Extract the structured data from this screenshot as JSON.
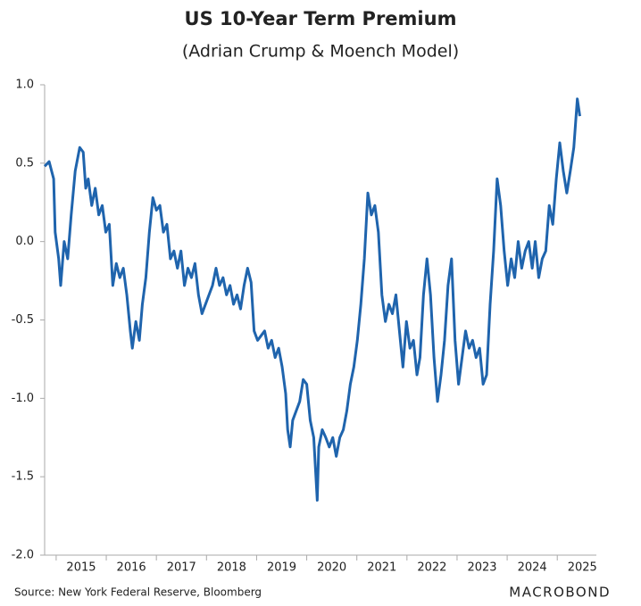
{
  "chart_data": {
    "type": "line",
    "title": "US 10-Year Term Premium",
    "subtitle": "(Adrian Crump & Moench Model)",
    "source": "Source: New York Federal Reserve, Bloomberg",
    "brand": "MACROBOND",
    "grid": false,
    "xlim": [
      2014.77,
      2025.78
    ],
    "xticks": [
      2015,
      2016,
      2017,
      2018,
      2019,
      2020,
      2021,
      2022,
      2023,
      2024,
      2025
    ],
    "ylim": [
      -2.0,
      1.0
    ],
    "yticks": [
      {
        "value": 1.0,
        "label": "1.0"
      },
      {
        "value": 0.5,
        "label": "0.5"
      },
      {
        "value": 0.0,
        "label": "0.0"
      },
      {
        "value": -0.5,
        "label": "-0.5"
      },
      {
        "value": -1.0,
        "label": "-1.0"
      },
      {
        "value": -1.5,
        "label": "-1.5"
      },
      {
        "value": -2.0,
        "label": "-2.0"
      }
    ],
    "x": [
      2014.77,
      2014.86,
      2014.95,
      2014.98,
      2015.05,
      2015.09,
      2015.16,
      2015.23,
      2015.3,
      2015.38,
      2015.47,
      2015.54,
      2015.59,
      2015.64,
      2015.71,
      2015.78,
      2015.85,
      2015.92,
      2015.99,
      2016.06,
      2016.13,
      2016.2,
      2016.27,
      2016.34,
      2016.41,
      2016.48,
      2016.52,
      2016.59,
      2016.66,
      2016.72,
      2016.79,
      2016.86,
      2016.93,
      2017.0,
      2017.07,
      2017.14,
      2017.21,
      2017.28,
      2017.35,
      2017.42,
      2017.49,
      2017.56,
      2017.63,
      2017.7,
      2017.77,
      2017.84,
      2017.91,
      2017.98,
      2018.05,
      2018.12,
      2018.19,
      2018.26,
      2018.33,
      2018.4,
      2018.47,
      2018.54,
      2018.61,
      2018.68,
      2018.75,
      2018.82,
      2018.89,
      2018.95,
      2019.02,
      2019.09,
      2019.16,
      2019.23,
      2019.3,
      2019.37,
      2019.44,
      2019.51,
      2019.58,
      2019.62,
      2019.67,
      2019.72,
      2019.79,
      2019.86,
      2019.93,
      2020.0,
      2020.07,
      2020.14,
      2020.21,
      2020.24,
      2020.31,
      2020.38,
      2020.45,
      2020.52,
      2020.59,
      2020.66,
      2020.73,
      2020.8,
      2020.87,
      2020.94,
      2021.01,
      2021.08,
      2021.15,
      2021.22,
      2021.29,
      2021.36,
      2021.43,
      2021.5,
      2021.57,
      2021.64,
      2021.71,
      2021.78,
      2021.85,
      2021.92,
      2021.99,
      2022.06,
      2022.13,
      2022.2,
      2022.26,
      2022.33,
      2022.4,
      2022.47,
      2022.54,
      2022.61,
      2022.68,
      2022.75,
      2022.82,
      2022.89,
      2022.96,
      2023.03,
      2023.1,
      2023.17,
      2023.24,
      2023.31,
      2023.38,
      2023.45,
      2023.52,
      2023.59,
      2023.66,
      2023.73,
      2023.8,
      2023.87,
      2023.94,
      2024.01,
      2024.08,
      2024.15,
      2024.22,
      2024.29,
      2024.36,
      2024.43,
      2024.5,
      2024.56,
      2024.63,
      2024.7,
      2024.77,
      2024.84,
      2024.91,
      2024.98,
      2025.05,
      2025.12,
      2025.19,
      2025.26,
      2025.33,
      2025.4,
      2025.45
    ],
    "series": [
      {
        "name": "US 10-Year Term Premium",
        "color": "#1f64ad",
        "values": [
          0.48,
          0.51,
          0.4,
          0.06,
          -0.11,
          -0.28,
          0.0,
          -0.11,
          0.17,
          0.45,
          0.6,
          0.57,
          0.34,
          0.4,
          0.23,
          0.34,
          0.17,
          0.23,
          0.06,
          0.11,
          -0.28,
          -0.14,
          -0.23,
          -0.17,
          -0.34,
          -0.57,
          -0.68,
          -0.51,
          -0.63,
          -0.4,
          -0.23,
          0.06,
          0.28,
          0.2,
          0.23,
          0.06,
          0.11,
          -0.11,
          -0.06,
          -0.17,
          -0.06,
          -0.28,
          -0.17,
          -0.23,
          -0.14,
          -0.34,
          -0.46,
          -0.4,
          -0.34,
          -0.28,
          -0.17,
          -0.28,
          -0.23,
          -0.34,
          -0.28,
          -0.4,
          -0.34,
          -0.43,
          -0.28,
          -0.17,
          -0.26,
          -0.57,
          -0.63,
          -0.6,
          -0.57,
          -0.68,
          -0.63,
          -0.74,
          -0.68,
          -0.8,
          -0.97,
          -1.2,
          -1.31,
          -1.14,
          -1.08,
          -1.02,
          -0.88,
          -0.91,
          -1.14,
          -1.25,
          -1.65,
          -1.31,
          -1.2,
          -1.25,
          -1.31,
          -1.25,
          -1.37,
          -1.25,
          -1.2,
          -1.08,
          -0.91,
          -0.8,
          -0.63,
          -0.4,
          -0.11,
          0.31,
          0.17,
          0.23,
          0.06,
          -0.34,
          -0.51,
          -0.4,
          -0.46,
          -0.34,
          -0.57,
          -0.8,
          -0.51,
          -0.68,
          -0.63,
          -0.85,
          -0.74,
          -0.34,
          -0.11,
          -0.34,
          -0.74,
          -1.02,
          -0.85,
          -0.63,
          -0.28,
          -0.11,
          -0.63,
          -0.91,
          -0.74,
          -0.57,
          -0.68,
          -0.63,
          -0.74,
          -0.68,
          -0.91,
          -0.85,
          -0.4,
          -0.06,
          0.4,
          0.23,
          -0.06,
          -0.28,
          -0.11,
          -0.23,
          0.0,
          -0.17,
          -0.06,
          0.0,
          -0.17,
          0.0,
          -0.23,
          -0.11,
          -0.06,
          0.23,
          0.11,
          0.4,
          0.63,
          0.45,
          0.31,
          0.45,
          0.6,
          0.91,
          0.8
        ]
      }
    ]
  }
}
